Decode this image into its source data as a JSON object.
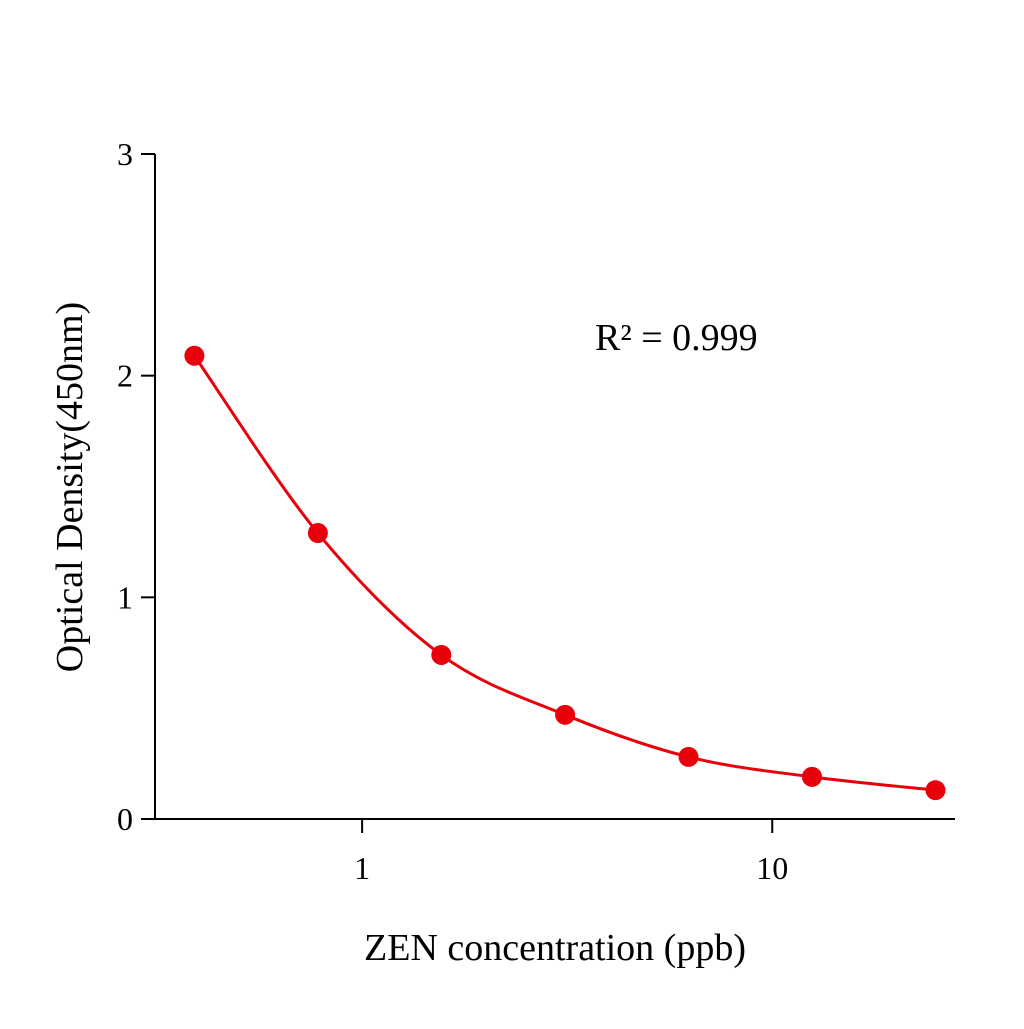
{
  "chart_data": {
    "type": "scatter",
    "title": "",
    "xlabel": "ZEN concentration (ppb)",
    "ylabel": "Optical Density(450nm)",
    "x_scale": "log",
    "xlim": [
      0.3126,
      27.9
    ],
    "ylim": [
      0,
      3
    ],
    "x_ticks": [
      1,
      10
    ],
    "x_tick_labels": [
      "1",
      "10"
    ],
    "y_ticks": [
      0,
      1,
      2,
      3
    ],
    "y_tick_labels": [
      "0",
      "1",
      "2",
      "3"
    ],
    "grid": false,
    "annotation": "R² = 0.999",
    "series": [
      {
        "x": [
          0.39,
          0.78,
          1.56,
          3.125,
          6.25,
          12.5,
          25
        ],
        "y": [
          2.09,
          1.29,
          0.74,
          0.47,
          0.28,
          0.19,
          0.13
        ],
        "color": "#e8000b",
        "fit_line": true
      }
    ]
  }
}
